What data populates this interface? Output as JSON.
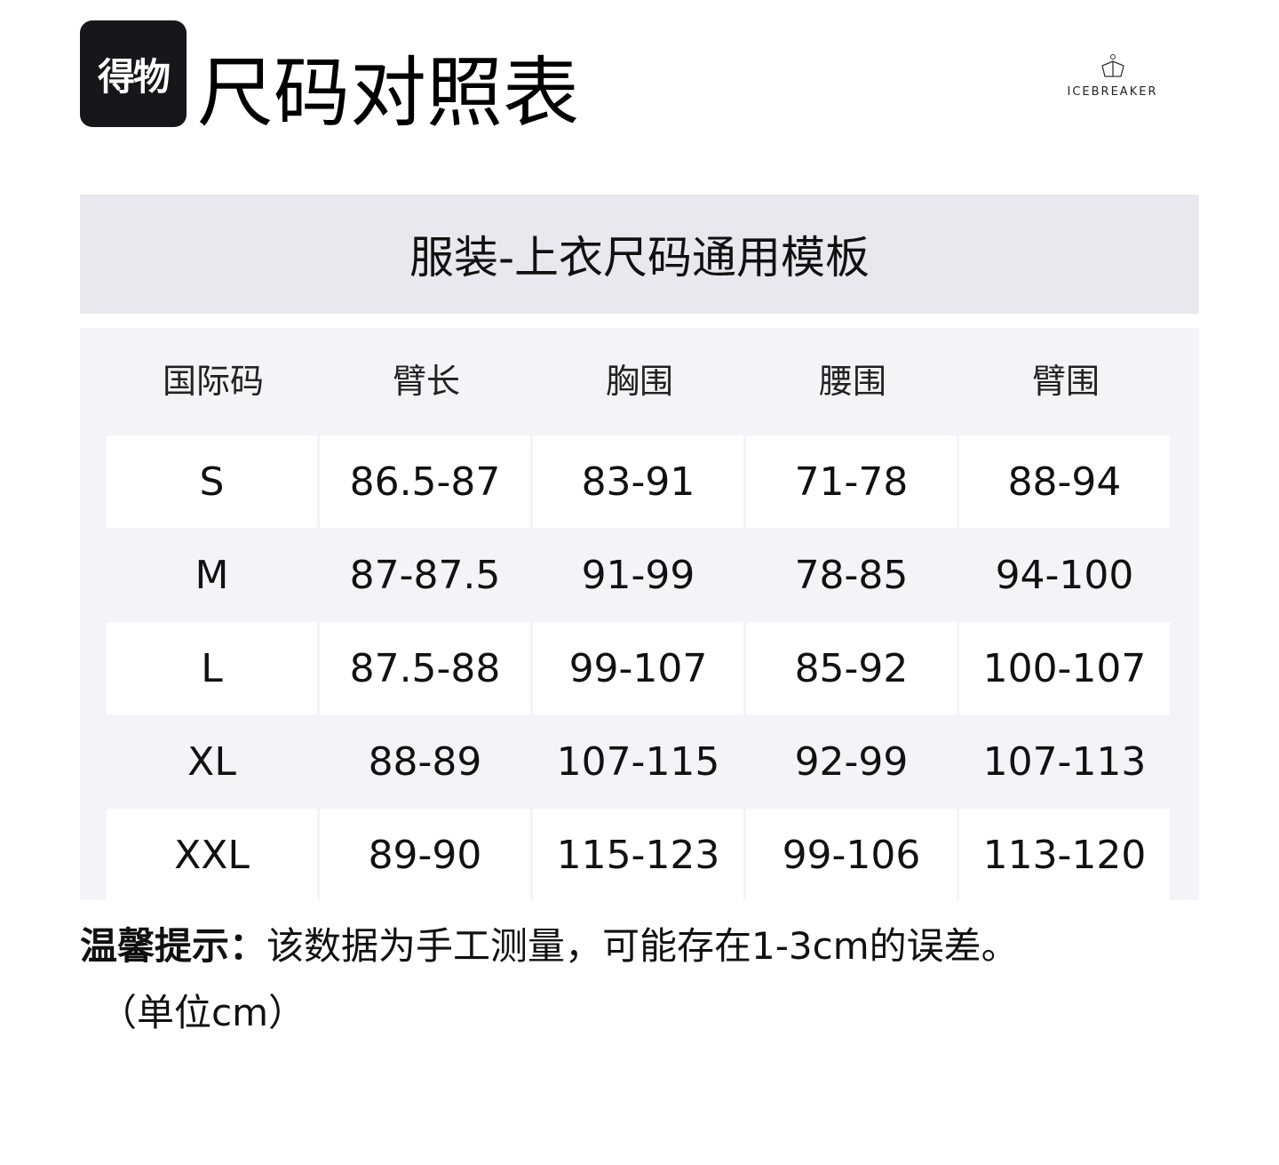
{
  "header": {
    "logo_text": "得物",
    "title": "尺码对照表",
    "brand": "ICEBREAKER"
  },
  "table": {
    "title": "服装-上衣尺码通用模板",
    "columns": [
      "国际码",
      "臂长",
      "胸围",
      "腰围",
      "臂围"
    ],
    "rows": [
      [
        "S",
        "86.5-87",
        "83-91",
        "71-78",
        "88-94"
      ],
      [
        "M",
        "87-87.5",
        "91-99",
        "78-85",
        "94-100"
      ],
      [
        "L",
        "87.5-88",
        "99-107",
        "85-92",
        "100-107"
      ],
      [
        "XL",
        "88-89",
        "107-115",
        "92-99",
        "107-113"
      ],
      [
        "XXL",
        "89-90",
        "115-123",
        "99-106",
        "113-120"
      ]
    ]
  },
  "footer": {
    "tip_label": "温馨提示：",
    "tip_text": "该数据为手工测量，可能存在1-3cm的误差。",
    "unit": "（单位cm）"
  }
}
